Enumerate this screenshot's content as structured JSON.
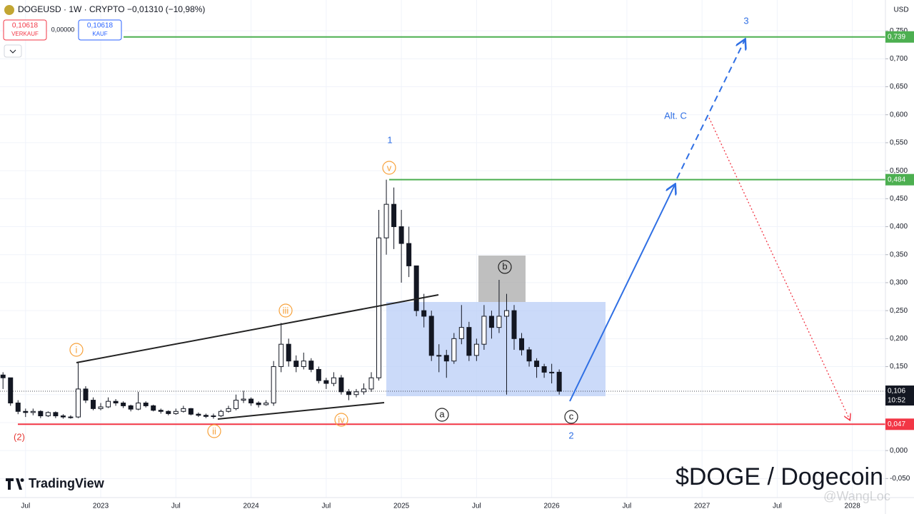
{
  "header": {
    "symbol": "DOGEUSD · 1W · CRYPTO",
    "change": "−0,01310 (−10,98%)",
    "sell_price": "0,10618",
    "sell_label": "VERKAUF",
    "spread": "0,00000",
    "buy_price": "0,10618",
    "buy_label": "KAUF",
    "currency": "USD"
  },
  "branding": {
    "logo": "TradingView",
    "headline": "$DOGE / Dogecoin",
    "watermark": "@WangLoc"
  },
  "chart_data": {
    "type": "candlestick",
    "up_color": "#ffffff",
    "down_color": "#131722",
    "wick_color": "#131722",
    "grid": true,
    "x": [
      2022.35,
      2022.4,
      2022.45,
      2022.5,
      2022.55,
      2022.6,
      2022.65,
      2022.7,
      2022.75,
      2022.8,
      2022.85,
      2022.9,
      2022.95,
      2023.0,
      2023.05,
      2023.1,
      2023.15,
      2023.2,
      2023.25,
      2023.3,
      2023.35,
      2023.4,
      2023.45,
      2023.5,
      2023.55,
      2023.6,
      2023.65,
      2023.7,
      2023.75,
      2023.8,
      2023.85,
      2023.9,
      2023.95,
      2024.0,
      2024.05,
      2024.1,
      2024.15,
      2024.2,
      2024.25,
      2024.3,
      2024.35,
      2024.4,
      2024.45,
      2024.5,
      2024.55,
      2024.6,
      2024.65,
      2024.7,
      2024.75,
      2024.8,
      2024.85,
      2024.9,
      2024.95,
      2025.0,
      2025.05,
      2025.1,
      2025.15,
      2025.2,
      2025.25,
      2025.3,
      2025.35,
      2025.4,
      2025.45,
      2025.5,
      2025.55,
      2025.6,
      2025.65,
      2025.7,
      2025.75,
      2025.8,
      2025.85,
      2025.9,
      2025.95,
      2026.0,
      2026.05
    ],
    "open": [
      0.135,
      0.13,
      0.085,
      0.07,
      0.068,
      0.07,
      0.062,
      0.068,
      0.062,
      0.06,
      0.06,
      0.11,
      0.09,
      0.075,
      0.078,
      0.088,
      0.085,
      0.08,
      0.074,
      0.085,
      0.08,
      0.072,
      0.07,
      0.066,
      0.07,
      0.075,
      0.065,
      0.063,
      0.061,
      0.062,
      0.07,
      0.075,
      0.09,
      0.092,
      0.085,
      0.082,
      0.085,
      0.15,
      0.19,
      0.16,
      0.15,
      0.16,
      0.145,
      0.125,
      0.12,
      0.13,
      0.105,
      0.1,
      0.105,
      0.11,
      0.13,
      0.38,
      0.44,
      0.4,
      0.37,
      0.33,
      0.25,
      0.24,
      0.17,
      0.17,
      0.16,
      0.2,
      0.22,
      0.17,
      0.19,
      0.24,
      0.22,
      0.24,
      0.25,
      0.2,
      0.18,
      0.16,
      0.15,
      0.14,
      0.14
    ],
    "high": [
      0.14,
      0.13,
      0.09,
      0.075,
      0.075,
      0.072,
      0.07,
      0.07,
      0.065,
      0.063,
      0.157,
      0.115,
      0.095,
      0.085,
      0.095,
      0.092,
      0.088,
      0.082,
      0.105,
      0.088,
      0.082,
      0.075,
      0.072,
      0.075,
      0.08,
      0.076,
      0.068,
      0.066,
      0.066,
      0.073,
      0.08,
      0.1,
      0.107,
      0.095,
      0.088,
      0.09,
      0.16,
      0.228,
      0.2,
      0.17,
      0.175,
      0.165,
      0.15,
      0.13,
      0.14,
      0.135,
      0.11,
      0.11,
      0.12,
      0.14,
      0.43,
      0.484,
      0.47,
      0.43,
      0.4,
      0.33,
      0.28,
      0.25,
      0.19,
      0.18,
      0.21,
      0.26,
      0.23,
      0.2,
      0.26,
      0.25,
      0.305,
      0.28,
      0.26,
      0.21,
      0.185,
      0.165,
      0.155,
      0.155,
      0.145
    ],
    "low": [
      0.11,
      0.08,
      0.065,
      0.06,
      0.063,
      0.058,
      0.06,
      0.058,
      0.057,
      0.057,
      0.058,
      0.085,
      0.072,
      0.072,
      0.076,
      0.08,
      0.076,
      0.07,
      0.072,
      0.077,
      0.07,
      0.066,
      0.063,
      0.064,
      0.068,
      0.063,
      0.06,
      0.058,
      0.057,
      0.06,
      0.068,
      0.072,
      0.085,
      0.08,
      0.077,
      0.08,
      0.08,
      0.14,
      0.15,
      0.14,
      0.145,
      0.14,
      0.12,
      0.11,
      0.115,
      0.1,
      0.09,
      0.095,
      0.1,
      0.105,
      0.125,
      0.35,
      0.36,
      0.3,
      0.31,
      0.24,
      0.22,
      0.16,
      0.14,
      0.13,
      0.155,
      0.19,
      0.16,
      0.16,
      0.18,
      0.2,
      0.21,
      0.1,
      0.18,
      0.17,
      0.15,
      0.13,
      0.13,
      0.12,
      0.1
    ],
    "close": [
      0.13,
      0.085,
      0.07,
      0.068,
      0.07,
      0.062,
      0.068,
      0.062,
      0.06,
      0.06,
      0.11,
      0.09,
      0.075,
      0.078,
      0.088,
      0.085,
      0.08,
      0.074,
      0.085,
      0.08,
      0.072,
      0.07,
      0.066,
      0.07,
      0.075,
      0.065,
      0.063,
      0.061,
      0.062,
      0.07,
      0.075,
      0.09,
      0.092,
      0.085,
      0.082,
      0.085,
      0.15,
      0.19,
      0.16,
      0.15,
      0.16,
      0.145,
      0.125,
      0.12,
      0.13,
      0.105,
      0.1,
      0.105,
      0.11,
      0.13,
      0.38,
      0.44,
      0.4,
      0.37,
      0.33,
      0.25,
      0.24,
      0.17,
      0.17,
      0.16,
      0.2,
      0.22,
      0.17,
      0.19,
      0.24,
      0.22,
      0.24,
      0.25,
      0.2,
      0.18,
      0.16,
      0.15,
      0.14,
      0.14,
      0.106
    ],
    "xlim": [
      2022.33,
      2028.22
    ],
    "ylim": [
      -0.084,
      0.805
    ],
    "xticks": [
      {
        "value": 2022.5,
        "label": "Jul"
      },
      2023,
      {
        "value": 2023.5,
        "label": "Jul"
      },
      2024,
      {
        "value": 2024.5,
        "label": "Jul"
      },
      2025,
      {
        "value": 2025.5,
        "label": "Jul"
      },
      2026,
      {
        "value": 2026.5,
        "label": "Jul"
      },
      2027,
      {
        "value": 2027.5,
        "label": "Jul"
      },
      2028
    ],
    "yticks": [
      {
        "value": 0.75,
        "label": "0,750"
      },
      {
        "value": 0.7,
        "label": "0,700"
      },
      {
        "value": 0.65,
        "label": "0,650"
      },
      {
        "value": 0.6,
        "label": "0,600"
      },
      {
        "value": 0.55,
        "label": "0,550"
      },
      {
        "value": 0.5,
        "label": "0,500"
      },
      {
        "value": 0.45,
        "label": "0,450"
      },
      {
        "value": 0.4,
        "label": "0,400"
      },
      {
        "value": 0.35,
        "label": "0,350"
      },
      {
        "value": 0.3,
        "label": "0,300"
      },
      {
        "value": 0.25,
        "label": "0,250"
      },
      {
        "value": 0.2,
        "label": "0,200"
      },
      {
        "value": 0.15,
        "label": "0,150"
      },
      {
        "value": 0.1,
        "label": "0,100"
      },
      {
        "value": 0.05,
        "label": "0,050"
      },
      {
        "value": 0,
        "label": "0,000"
      },
      {
        "value": -0.05,
        "label": "-0,050"
      }
    ],
    "levels": [
      {
        "value": 0.739,
        "label": "0,739",
        "color": "#4caf50"
      },
      {
        "value": 0.484,
        "label": "0,484",
        "color": "#4caf50"
      },
      {
        "value": 0.047,
        "label": "0,047",
        "color": "#f23645"
      }
    ],
    "last_price": {
      "value": 0.106,
      "label": "0,106",
      "countdown": "10:52"
    },
    "annotations": {
      "wave_2_prior": "(2)",
      "i": "i",
      "ii": "ii",
      "iii": "iii",
      "iv": "iv",
      "v": "v",
      "wave_1": "1",
      "a": "a",
      "b": "b",
      "c": "c",
      "wave_2": "2",
      "alt_c": "Alt. C",
      "wave_3": "3"
    }
  }
}
